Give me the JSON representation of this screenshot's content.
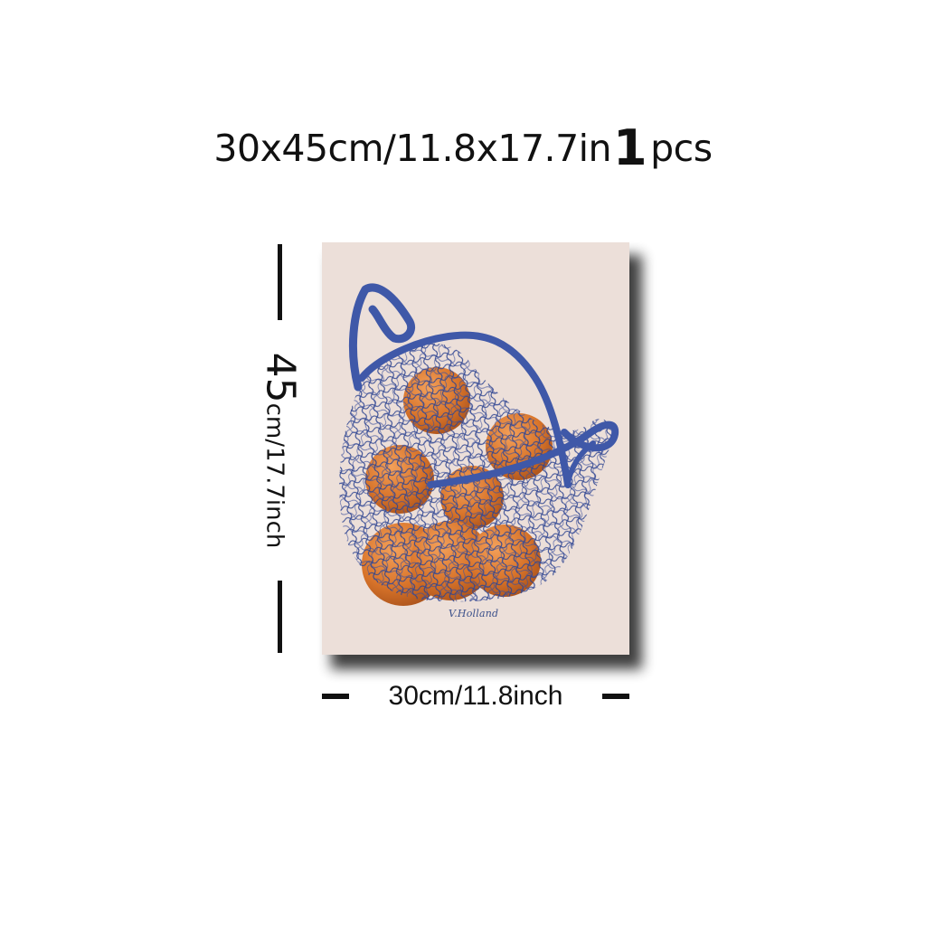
{
  "product": {
    "size_title": "30x45cm/11.8x17.7in",
    "quantity_number": "1",
    "quantity_unit": "pcs"
  },
  "dimensions": {
    "height_value": "45",
    "height_label": "cm/17.7inch",
    "width_label": "30cm/11.8inch"
  },
  "artwork": {
    "signature": "V.Holland",
    "subject": "oranges-in-net-bag",
    "colors": {
      "background": "#ecdfd9",
      "net": "#3b4f9c",
      "orange": "#d8742a"
    }
  }
}
